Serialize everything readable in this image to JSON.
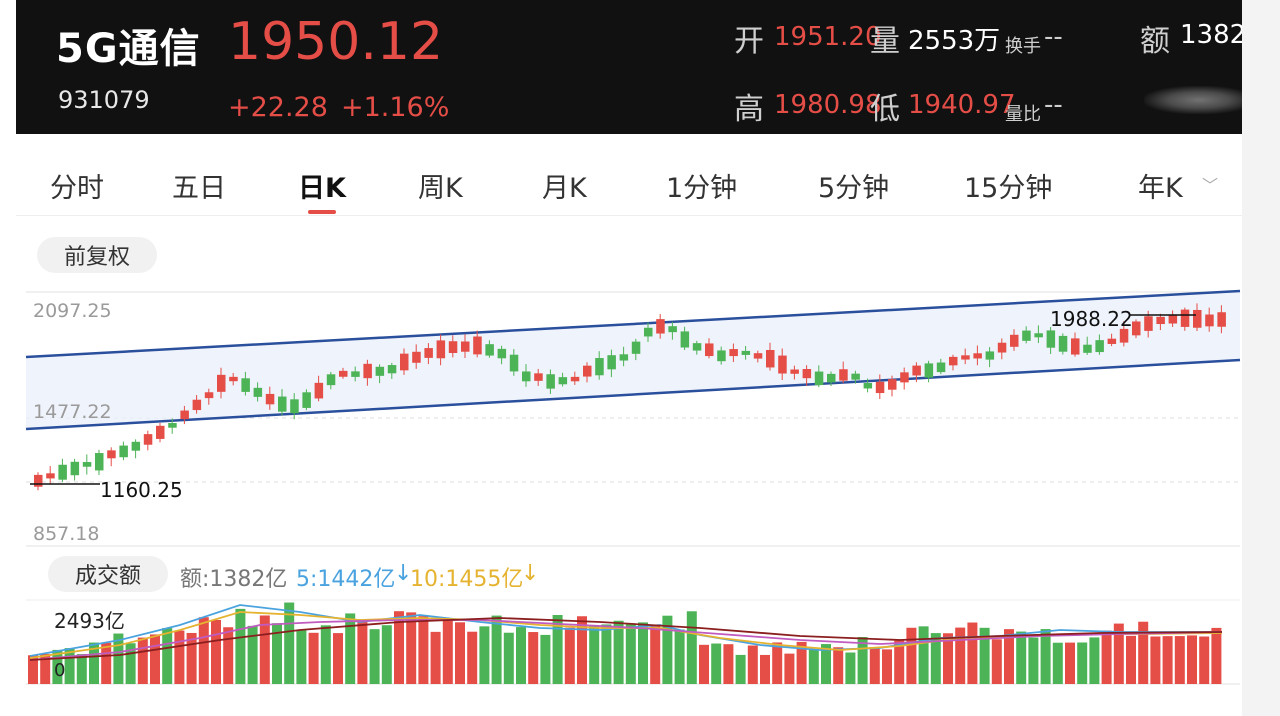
{
  "header": {
    "name": "5G通信",
    "code": "931079",
    "price": "1950.12",
    "change": "+22.28",
    "change_pct": "+1.16%",
    "open_label": "开",
    "open": "1951.20",
    "volume_label": "量",
    "volume": "2553万",
    "turnover_label": "换手",
    "turnover": "--",
    "amount_label": "额",
    "amount": "1382",
    "high_label": "高",
    "high": "1980.98",
    "low_label": "低",
    "low": "1940.97",
    "vol_ratio_label": "量比",
    "vol_ratio": "--"
  },
  "tabs": [
    {
      "label": "分时"
    },
    {
      "label": "五日"
    },
    {
      "label": "日K"
    },
    {
      "label": "周K"
    },
    {
      "label": "月K"
    },
    {
      "label": "1分钟"
    },
    {
      "label": "5分钟"
    },
    {
      "label": "15分钟"
    },
    {
      "label": "年K"
    }
  ],
  "active_tab": "日K",
  "adjust_label": "前复权",
  "kline": {
    "y_top": "2097.25",
    "y_mid": "1477.22",
    "y_bottom": "857.18",
    "max_label": "1988.22",
    "min_label": "1160.25"
  },
  "volume": {
    "button_label": "成交额",
    "amount_text": "额:1382亿",
    "ma5_text": "5:1442亿",
    "ma5_arrow": "↓",
    "ma10_text": "10:1455亿",
    "ma10_arrow": "↓",
    "max_label": "2493亿",
    "zero_label": "0"
  },
  "colors": {
    "up": "#e54d47",
    "down": "#4cb356",
    "channel": "#2a4f9c",
    "ma5": "#4aa3df",
    "ma10": "#e5b330",
    "ma20": "#c05bc0",
    "ma30": "#8b1e1e"
  },
  "icons": {
    "chevron": "chevron-down-icon",
    "down_arrow": "down-arrow-icon"
  }
}
